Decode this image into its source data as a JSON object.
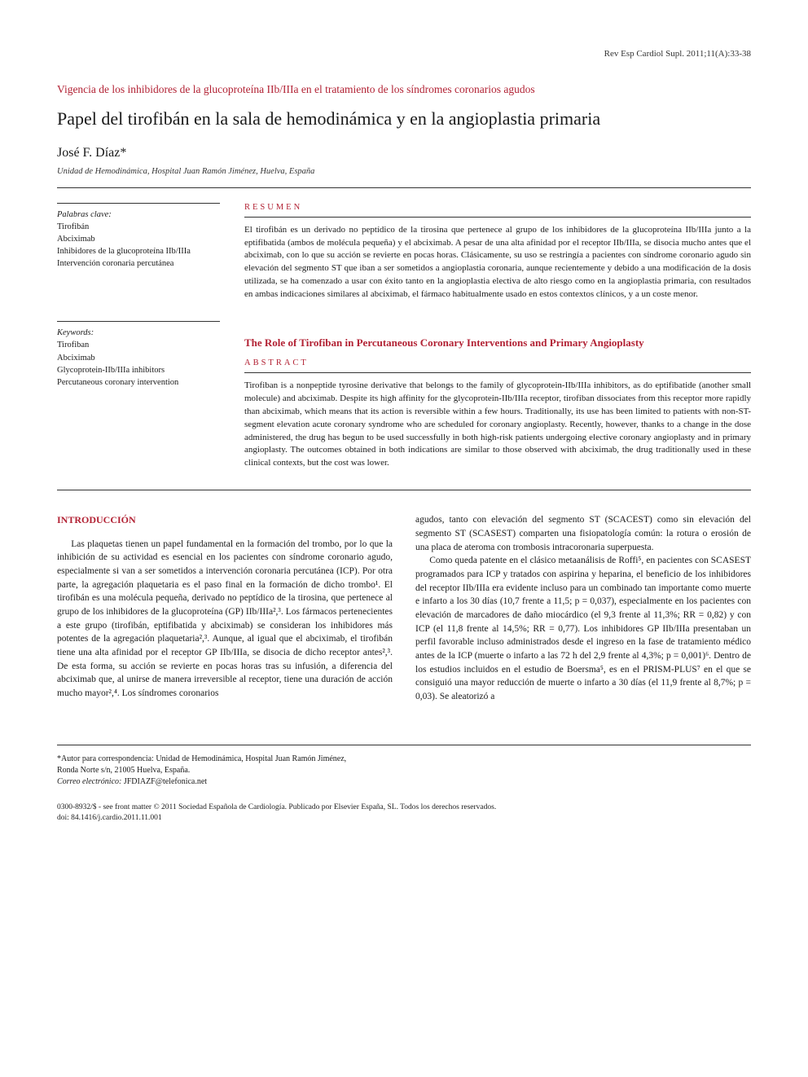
{
  "header_ref": "Rev Esp Cardiol Supl. 2011;11(A):33-38",
  "section_label": "Vigencia de los inhibidores de la glucoproteína IIb/IIIa en el tratamiento de los síndromes coronarios agudos",
  "title": "Papel del tirofibán en la sala de hemodinámica y en la angioplastia primaria",
  "author": "José F. Díaz*",
  "affiliation": "Unidad de Hemodinámica, Hospital Juan Ramón Jiménez, Huelva, España",
  "palabras_label": "Palabras clave:",
  "palabras": [
    "Tirofibán",
    "Abciximab",
    "Inhibidores de la glucoproteína IIb/IIIa",
    "Intervención coronaria percutánea"
  ],
  "keywords_label": "Keywords:",
  "keywords": [
    "Tirofiban",
    "Abciximab",
    "Glycoprotein-IIb/IIIa inhibitors",
    "Percutaneous coronary intervention"
  ],
  "resumen_label": "RESUMEN",
  "resumen_text": "El tirofibán es un derivado no peptídico de la tirosina que pertenece al grupo de los inhibidores de la glucoproteína IIb/IIIa junto a la eptifibatida (ambos de molécula pequeña) y el abciximab. A pesar de una alta afinidad por el receptor IIb/IIIa, se disocia mucho antes que el abciximab, con lo que su acción se revierte en pocas horas. Clásicamente, su uso se restringía a pacientes con síndrome coronario agudo sin elevación del segmento ST que iban a ser sometidos a angioplastia coronaria, aunque recientemente y debido a una modificación de la dosis utilizada, se ha comenzado a usar con éxito tanto en la angioplastia electiva de alto riesgo como en la angioplastia primaria, con resultados en ambas indicaciones similares al abciximab, el fármaco habitualmente usado en estos contextos clínicos, y a un coste menor.",
  "english_title": "The Role of Tirofiban in Percutaneous Coronary Interventions and Primary Angioplasty",
  "abstract_label": "ABSTRACT",
  "abstract_text": "Tirofiban is a nonpeptide tyrosine derivative that belongs to the family of glycoprotein-IIb/IIIa inhibitors, as do eptifibatide (another small molecule) and abciximab. Despite its high affinity for the glycoprotein-IIb/IIIa receptor, tirofiban dissociates from this receptor more rapidly than abciximab, which means that its action is reversible within a few hours. Traditionally, its use has been limited to patients with non-ST-segment elevation acute coronary syndrome who are scheduled for coronary angioplasty. Recently, however, thanks to a change in the dose administered, the drug has begun to be used successfully in both high-risk patients undergoing elective coronary angioplasty and in primary angioplasty. The outcomes obtained in both indications are similar to those observed with abciximab, the drug traditionally used in these clinical contexts, but the cost was lower.",
  "intro_heading": "INTRODUCCIÓN",
  "body": {
    "col1_p1": "Las plaquetas tienen un papel fundamental en la formación del trombo, por lo que la inhibición de su actividad es esencial en los pacientes con síndrome coronario agudo, especialmente si van a ser sometidos a intervención coronaria percutánea (ICP). Por otra parte, la agregación plaquetaria es el paso final en la formación de dicho trombo¹. El tirofibán es una molécula pequeña, derivado no peptídico de la tirosina, que pertenece al grupo de los inhibidores de la glucoproteína (GP) IIb/IIIa²,³. Los fármacos pertenecientes a este grupo (tirofibán, eptifibatida y abciximab) se consideran los inhibidores más potentes de la agregación plaquetaria²,³. Aunque, al igual que el abciximab, el tirofibán tiene una alta afinidad por el receptor GP IIb/IIIa, se disocia de dicho receptor antes²,³. De esta forma, su acción se revierte en pocas horas tras su infusión, a diferencia del abciximab que, al unirse de manera irreversible al receptor, tiene una duración de acción mucho mayor²,⁴. Los síndromes coronarios",
    "col2_p1": "agudos, tanto con elevación del segmento ST (SCACEST) como sin elevación del segmento ST (SCASEST) comparten una fisiopatología común: la rotura o erosión de una placa de ateroma con trombosis intracoronaria superpuesta.",
    "col2_p2": "Como queda patente en el clásico metaanálisis de Roffi⁵, en pacientes con SCASEST programados para ICP y tratados con aspirina y heparina, el beneficio de los inhibidores del receptor IIb/IIIa era evidente incluso para un combinado tan importante como muerte e infarto a los 30 días (10,7 frente a 11,5; p = 0,037), especialmente en los pacientes con elevación de marcadores de daño miocárdico (el 9,3 frente al 11,3%; RR = 0,82) y con ICP (el 11,8 frente al 14,5%; RR = 0,77). Los inhibidores GP IIb/IIIa presentaban un perfil favorable incluso administrados desde el ingreso en la fase de tratamiento médico antes de la ICP (muerte o infarto a las 72 h del 2,9 frente al 4,3%; p = 0,001)⁶. Dentro de los estudios incluidos en el estudio de Boersma⁵, es en el PRISM-PLUS⁷ en el que se consiguió una mayor reducción de muerte o infarto a 30 días (el 11,9 frente al 8,7%; p = 0,03). Se aleatorizó a"
  },
  "footer": {
    "author_note": "*Autor para correspondencia: Unidad de Hemodinámica, Hospital Juan Ramón Jiménez,",
    "address": "Ronda Norte s/n, 21005 Huelva, España.",
    "correo_label": "Correo electrónico:",
    "correo_value": "JFDIAZF@telefonica.net",
    "copyright_line1": "0300-8932/$ - see front matter © 2011 Sociedad Española de Cardiología. Publicado por Elsevier España, SL. Todos los derechos reservados.",
    "copyright_line2": "doi: 84.1416/j.cardio.2011.11.001"
  },
  "colors": {
    "accent": "#b22234",
    "text": "#1a1a1a",
    "background": "#ffffff"
  }
}
